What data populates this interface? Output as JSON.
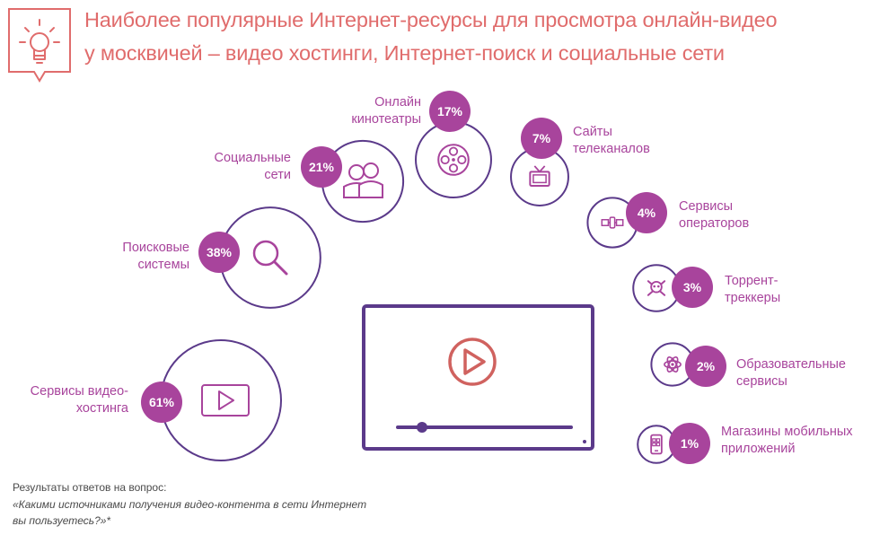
{
  "title": {
    "line1": "Наиболее популярные Интернет-ресурсы  для просмотра онлайн-видео",
    "line2": "у москвичей – видео хостинги, Интернет-поиск и социальные сети"
  },
  "footnote": {
    "line1": "Результаты ответов на вопрос:",
    "line2": "«Какими источниками получения видео-контента в сети Интернет",
    "line3": "вы пользуетесь?»*"
  },
  "colors": {
    "title": "#e06c6c",
    "accent": "#a8449c",
    "outline": "#5b3a8a",
    "play": "#d0625f",
    "label": "#a8449c"
  },
  "icons": [
    "lightbulb-icon",
    "film-reel-icon",
    "people-icon",
    "tv-icon",
    "search-icon",
    "satellite-icon",
    "skull-icon",
    "atom-icon",
    "play-icon",
    "phone-apps-icon"
  ],
  "chart_data": {
    "type": "bubble",
    "unit": "%",
    "categories": [
      {
        "label_lines": [
          "Сервисы видео-",
          "хостинга"
        ],
        "value": 61,
        "value_label": "61%",
        "icon": "play-icon"
      },
      {
        "label_lines": [
          "Поисковые",
          "системы"
        ],
        "value": 38,
        "value_label": "38%",
        "icon": "search-icon"
      },
      {
        "label_lines": [
          "Социальные",
          "сети"
        ],
        "value": 21,
        "value_label": "21%",
        "icon": "people-icon"
      },
      {
        "label_lines": [
          "Онлайн",
          "кинотеатры"
        ],
        "value": 17,
        "value_label": "17%",
        "icon": "film-reel-icon"
      },
      {
        "label_lines": [
          "Сайты",
          "телеканалов"
        ],
        "value": 7,
        "value_label": "7%",
        "icon": "tv-icon"
      },
      {
        "label_lines": [
          "Сервисы",
          "операторов"
        ],
        "value": 4,
        "value_label": "4%",
        "icon": "satellite-icon"
      },
      {
        "label_lines": [
          "Торрент-",
          "треккеры"
        ],
        "value": 3,
        "value_label": "3%",
        "icon": "skull-icon"
      },
      {
        "label_lines": [
          "Образовательные",
          "сервисы"
        ],
        "value": 2,
        "value_label": "2%",
        "icon": "atom-icon"
      },
      {
        "label_lines": [
          "Магазины мобильных",
          "приложений"
        ],
        "value": 1,
        "value_label": "1%",
        "icon": "phone-apps-icon"
      }
    ]
  }
}
